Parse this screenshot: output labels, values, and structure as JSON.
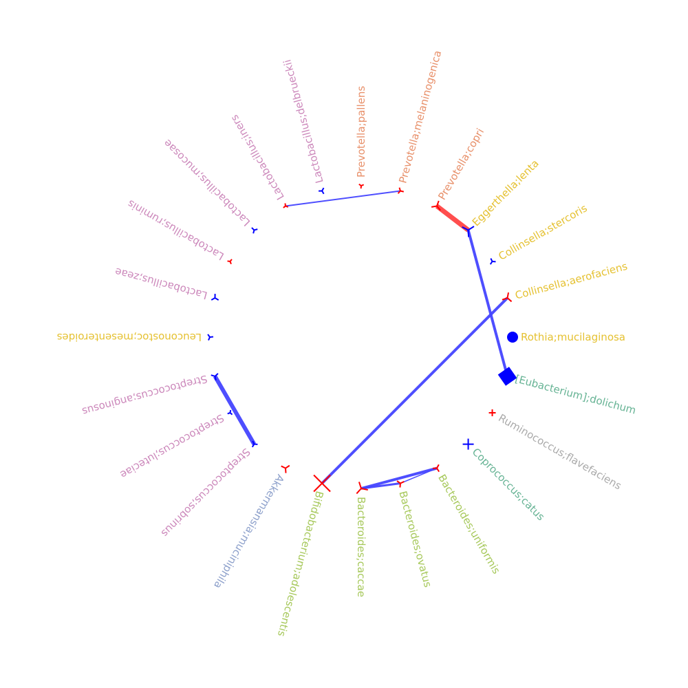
{
  "nodes": [
    {
      "name": "Rothia;mucilaginosa",
      "label_color": "#e5c131",
      "marker": "circle",
      "marker_color": "#0000ff"
    },
    {
      "name": "[Eubacterium];dolichum",
      "label_color": "#66b394",
      "marker": "diamond",
      "marker_color": "#0000ff"
    },
    {
      "name": "Ruminococcus;flavefaciens",
      "label_color": "#aaaaaa",
      "marker": "plus",
      "marker_color": "#ff0000"
    },
    {
      "name": "Coprococcus;catus",
      "label_color": "#66b394",
      "marker": "plus",
      "marker_color": "#0000ff"
    },
    {
      "name": "Bacteroides;uniformis",
      "label_color": "#a6c85a",
      "marker": "tri",
      "marker_color": "#ff0000"
    },
    {
      "name": "Bacteroides;ovatus",
      "label_color": "#a6c85a",
      "marker": "tri",
      "marker_color": "#ff0000"
    },
    {
      "name": "Bacteroides;caccae",
      "label_color": "#a6c85a",
      "marker": "tri",
      "marker_color": "#ff0000"
    },
    {
      "name": "Bifidobacterium;adolescentis",
      "label_color": "#a6c85a",
      "marker": "x",
      "marker_color": "#ff0000"
    },
    {
      "name": "Akkermansia;muciniphila",
      "label_color": "#8da0cb",
      "marker": "tri",
      "marker_color": "#ff0000"
    },
    {
      "name": "Streptococcus;sobrinus",
      "label_color": "#cc88bb",
      "marker": "tri",
      "marker_color": "#0000ff"
    },
    {
      "name": "Streptococcus;luteciae",
      "label_color": "#cc88bb",
      "marker": "tri",
      "marker_color": "#0000ff"
    },
    {
      "name": "Streptococcus;anginosus",
      "label_color": "#cc88bb",
      "marker": "tri",
      "marker_color": "#0000ff"
    },
    {
      "name": "Leuconostoc;mesenteroides",
      "label_color": "#e5c131",
      "marker": "tri",
      "marker_color": "#0000ff"
    },
    {
      "name": "Lactobacillus;zeae",
      "label_color": "#cc88bb",
      "marker": "tri",
      "marker_color": "#0000ff"
    },
    {
      "name": "Lactobacillus;ruminis",
      "label_color": "#cc88bb",
      "marker": "tri",
      "marker_color": "#ff0000"
    },
    {
      "name": "Lactobacillus;mucosae",
      "label_color": "#cc88bb",
      "marker": "tri",
      "marker_color": "#0000ff"
    },
    {
      "name": "Lactobacillus;iners",
      "label_color": "#cc88bb",
      "marker": "tri",
      "marker_color": "#ff0000"
    },
    {
      "name": "Lactobacillus;delbrueckii",
      "label_color": "#cc88bb",
      "marker": "tri",
      "marker_color": "#0000ff"
    },
    {
      "name": "Prevotella;pallens",
      "label_color": "#e8906a",
      "marker": "tri",
      "marker_color": "#ff0000"
    },
    {
      "name": "Prevotella;melaninogenica",
      "label_color": "#e8906a",
      "marker": "tri",
      "marker_color": "#ff0000"
    },
    {
      "name": "Prevotella;copri",
      "label_color": "#e8906a",
      "marker": "tri",
      "marker_color": "#ff0000"
    },
    {
      "name": "Eggerthella;lenta",
      "label_color": "#e5c131",
      "marker": "tri",
      "marker_color": "#0000ff"
    },
    {
      "name": "Collinsella;stercoris",
      "label_color": "#e5c131",
      "marker": "tri",
      "marker_color": "#0000ff"
    },
    {
      "name": "Collinsella;aerofaciens",
      "label_color": "#e5c131",
      "marker": "tri",
      "marker_color": "#ff0000"
    }
  ],
  "edges": [
    {
      "source": "Lactobacillus;iners",
      "target": "Prevotella;melaninogenica",
      "color": "#4444ff",
      "weight": 2
    },
    {
      "source": "Prevotella;copri",
      "target": "Eggerthella;lenta",
      "color": "#ff4444",
      "weight": 7
    },
    {
      "source": "Eggerthella;lenta",
      "target": "[Eubacterium];dolichum",
      "color": "#4444ff",
      "weight": 4
    },
    {
      "source": "Collinsella;aerofaciens",
      "target": "Bifidobacterium;adolescentis",
      "color": "#4444ff",
      "weight": 4
    },
    {
      "source": "Streptococcus;anginosus",
      "target": "Streptococcus;sobrinus",
      "color": "#4444ff",
      "weight": 6
    },
    {
      "source": "Bacteroides;caccae",
      "target": "Bacteroides;uniformis",
      "color": "#4444ff",
      "weight": 4
    },
    {
      "source": "Bacteroides;caccae",
      "target": "Bacteroides;ovatus",
      "color": "#4444ff",
      "weight": 3
    },
    {
      "source": "Bacteroides;ovatus",
      "target": "Bacteroides;uniformis",
      "color": "#4444ff",
      "weight": 1.5
    }
  ]
}
